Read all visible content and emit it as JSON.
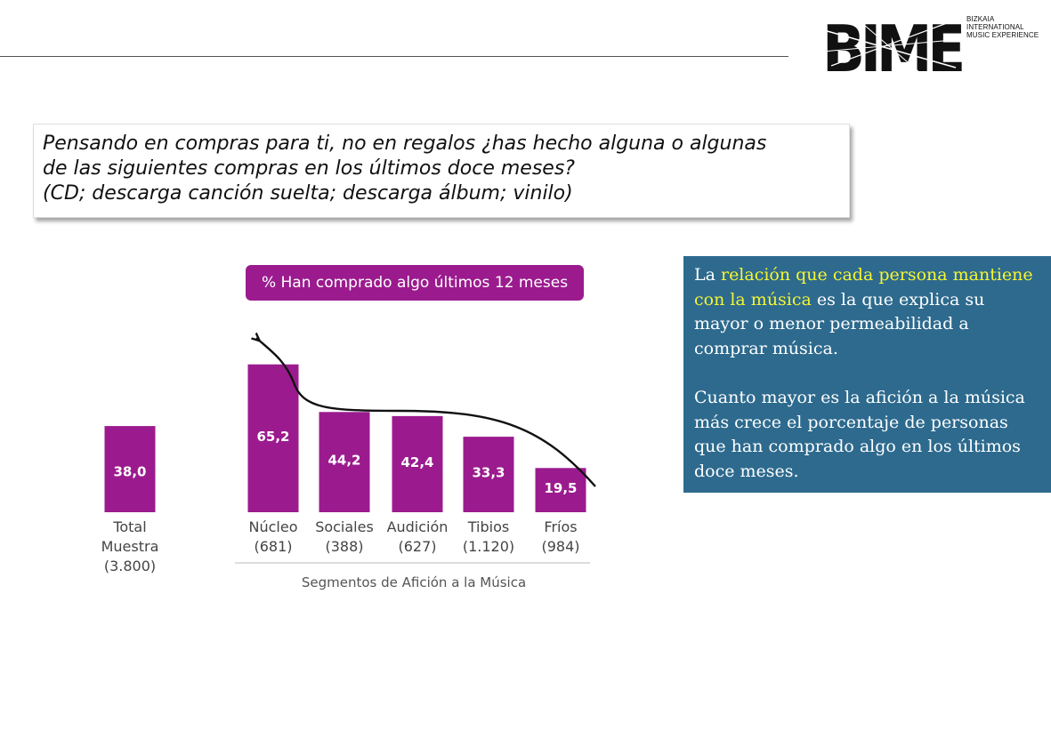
{
  "logo": {
    "letters": "BIME",
    "tagline": [
      "BIZKAIA",
      "INTERNATIONAL",
      "MUSIC EXPERIENCE"
    ]
  },
  "question": {
    "lines": [
      "Pensando en compras para ti, no en regalos ¿has hecho alguna o algunas",
      "de las siguientes compras en los últimos doce meses?",
      "(CD; descarga canción suelta; descarga álbum; vinilo)"
    ]
  },
  "info": {
    "p1_pre": "La ",
    "p1_highlight": "relación que cada persona mantiene con la música",
    "p1_post": " es la que explica su mayor o menor permeabilidad a comprar música.",
    "p2": "Cuanto mayor es la afición a la música más crece el porcentaje de personas que han comprado algo en los últimos doce meses."
  },
  "colors": {
    "bar": "#9b1b8e",
    "info_bg": "#2d6a8e",
    "highlight": "#f5f532"
  },
  "chart_data": {
    "type": "bar",
    "title": "% Han comprado algo últimos 12 meses",
    "xlabel": "Segmentos de Afición a la Música",
    "ylabel": "",
    "ylim": [
      0,
      70
    ],
    "grid": false,
    "data_labels": [
      "38,0",
      "65,2",
      "44,2",
      "42,4",
      "33,3",
      "19,5"
    ],
    "categories": [
      {
        "name": "Total Muestra",
        "lines": [
          "Total",
          "Muestra",
          "(3.800)"
        ],
        "value": 38.0
      },
      {
        "name": "Núcleo",
        "lines": [
          "Núcleo",
          "(681)"
        ],
        "value": 65.2
      },
      {
        "name": "Sociales",
        "lines": [
          "Sociales",
          "(388)"
        ],
        "value": 44.2
      },
      {
        "name": "Audición",
        "lines": [
          "Audición",
          "(627)"
        ],
        "value": 42.4
      },
      {
        "name": "Tibios",
        "lines": [
          "Tibios",
          "(1.120)"
        ],
        "value": 33.3
      },
      {
        "name": "Fríos",
        "lines": [
          "Fríos",
          "(984)"
        ],
        "value": 19.5
      }
    ],
    "annotation": "trend-arrow"
  }
}
